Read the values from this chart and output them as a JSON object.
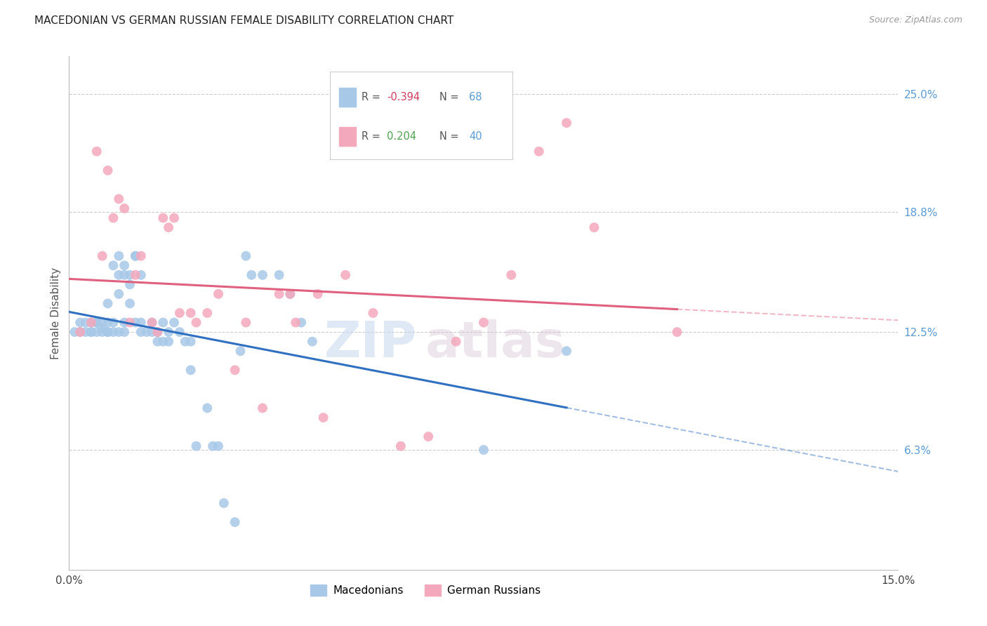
{
  "title": "MACEDONIAN VS GERMAN RUSSIAN FEMALE DISABILITY CORRELATION CHART",
  "source": "Source: ZipAtlas.com",
  "ylabel": "Female Disability",
  "xlim": [
    0.0,
    0.15
  ],
  "ylim": [
    0.0,
    0.27
  ],
  "ytick_labels": [
    "25.0%",
    "18.8%",
    "12.5%",
    "6.3%"
  ],
  "ytick_values": [
    0.25,
    0.188,
    0.125,
    0.063
  ],
  "macedonian_R": -0.394,
  "macedonian_N": 68,
  "german_russian_R": 0.204,
  "german_russian_N": 40,
  "macedonian_color": "#A8C8E8",
  "german_russian_color": "#F4A8BC",
  "macedonian_line_color": "#3070C0",
  "german_russian_line_color": "#E06080",
  "watermark_zip": "ZIP",
  "watermark_atlas": "atlas",
  "macedonian_x": [
    0.001,
    0.002,
    0.002,
    0.003,
    0.003,
    0.004,
    0.004,
    0.004,
    0.005,
    0.005,
    0.005,
    0.006,
    0.006,
    0.006,
    0.007,
    0.007,
    0.007,
    0.007,
    0.008,
    0.008,
    0.008,
    0.009,
    0.009,
    0.009,
    0.009,
    0.01,
    0.01,
    0.01,
    0.01,
    0.011,
    0.011,
    0.011,
    0.012,
    0.012,
    0.012,
    0.013,
    0.013,
    0.013,
    0.014,
    0.015,
    0.015,
    0.016,
    0.016,
    0.017,
    0.017,
    0.018,
    0.018,
    0.019,
    0.02,
    0.021,
    0.022,
    0.022,
    0.023,
    0.025,
    0.026,
    0.027,
    0.028,
    0.03,
    0.031,
    0.032,
    0.033,
    0.035,
    0.038,
    0.04,
    0.042,
    0.044,
    0.075,
    0.09
  ],
  "macedonian_y": [
    0.125,
    0.125,
    0.13,
    0.13,
    0.125,
    0.125,
    0.13,
    0.125,
    0.13,
    0.125,
    0.13,
    0.13,
    0.125,
    0.127,
    0.125,
    0.13,
    0.125,
    0.14,
    0.13,
    0.125,
    0.16,
    0.145,
    0.155,
    0.125,
    0.165,
    0.13,
    0.125,
    0.16,
    0.155,
    0.155,
    0.14,
    0.15,
    0.165,
    0.165,
    0.13,
    0.125,
    0.13,
    0.155,
    0.125,
    0.13,
    0.125,
    0.12,
    0.125,
    0.12,
    0.13,
    0.125,
    0.12,
    0.13,
    0.125,
    0.12,
    0.105,
    0.12,
    0.065,
    0.085,
    0.065,
    0.065,
    0.035,
    0.025,
    0.115,
    0.165,
    0.155,
    0.155,
    0.155,
    0.145,
    0.13,
    0.12,
    0.063,
    0.115
  ],
  "german_russian_x": [
    0.002,
    0.004,
    0.005,
    0.006,
    0.007,
    0.008,
    0.009,
    0.01,
    0.011,
    0.012,
    0.013,
    0.015,
    0.016,
    0.017,
    0.018,
    0.019,
    0.02,
    0.022,
    0.023,
    0.025,
    0.027,
    0.03,
    0.032,
    0.035,
    0.038,
    0.04,
    0.041,
    0.045,
    0.046,
    0.05,
    0.055,
    0.06,
    0.065,
    0.07,
    0.075,
    0.08,
    0.085,
    0.09,
    0.095,
    0.11
  ],
  "german_russian_y": [
    0.125,
    0.13,
    0.22,
    0.165,
    0.21,
    0.185,
    0.195,
    0.19,
    0.13,
    0.155,
    0.165,
    0.13,
    0.125,
    0.185,
    0.18,
    0.185,
    0.135,
    0.135,
    0.13,
    0.135,
    0.145,
    0.105,
    0.13,
    0.085,
    0.145,
    0.145,
    0.13,
    0.145,
    0.08,
    0.155,
    0.135,
    0.065,
    0.07,
    0.12,
    0.13,
    0.155,
    0.22,
    0.235,
    0.18,
    0.125
  ]
}
